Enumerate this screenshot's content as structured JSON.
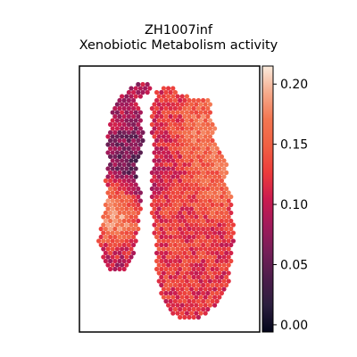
{
  "chart_data": {
    "type": "heatmap",
    "title_lines": [
      "ZH1007inf",
      "Xenobiotic Metabolism activity"
    ],
    "colorbar": {
      "ticks": [
        0.0,
        0.05,
        0.1,
        0.15,
        0.2
      ],
      "tick_labels": [
        "0.00",
        "0.05",
        "0.10",
        "0.15",
        "0.20"
      ],
      "range": [
        -0.006,
        0.215
      ],
      "colormap": "rocket",
      "stops": [
        "#03051a",
        "#2b1e3e",
        "#4c1d4b",
        "#751f58",
        "#a11a5b",
        "#cb1b4f",
        "#ec3c3b",
        "#f06043",
        "#f37651",
        "#f6ab8c",
        "#faebdd"
      ]
    },
    "tissue_regions": [
      {
        "name": "left strip",
        "outline": [
          [
            0.38,
            0.0
          ],
          [
            0.4,
            0.035
          ],
          [
            0.36,
            0.06
          ],
          [
            0.3,
            0.09
          ],
          [
            0.34,
            0.13
          ],
          [
            0.34,
            0.2
          ],
          [
            0.35,
            0.27
          ],
          [
            0.3,
            0.34
          ],
          [
            0.31,
            0.42
          ],
          [
            0.34,
            0.48
          ],
          [
            0.33,
            0.55
          ],
          [
            0.32,
            0.63
          ],
          [
            0.3,
            0.7
          ],
          [
            0.28,
            0.76
          ],
          [
            0.24,
            0.8
          ],
          [
            0.14,
            0.79
          ],
          [
            0.1,
            0.73
          ],
          [
            0.08,
            0.66
          ],
          [
            0.1,
            0.57
          ],
          [
            0.13,
            0.5
          ],
          [
            0.12,
            0.42
          ],
          [
            0.14,
            0.34
          ],
          [
            0.12,
            0.27
          ],
          [
            0.14,
            0.2
          ],
          [
            0.16,
            0.12
          ],
          [
            0.22,
            0.06
          ],
          [
            0.3,
            0.02
          ]
        ],
        "mean_activity": 0.09
      },
      {
        "name": "main tissue",
        "outline": [
          [
            0.58,
            1.0
          ],
          [
            0.68,
            0.985
          ],
          [
            0.76,
            0.94
          ],
          [
            0.82,
            0.9
          ],
          [
            0.86,
            0.84
          ],
          [
            0.86,
            0.76
          ],
          [
            0.88,
            0.68
          ],
          [
            0.89,
            0.62
          ],
          [
            0.87,
            0.56
          ],
          [
            0.87,
            0.49
          ],
          [
            0.83,
            0.43
          ],
          [
            0.84,
            0.36
          ],
          [
            0.82,
            0.3
          ],
          [
            0.76,
            0.25
          ],
          [
            0.78,
            0.19
          ],
          [
            0.74,
            0.14
          ],
          [
            0.75,
            0.08
          ],
          [
            0.67,
            0.08
          ],
          [
            0.58,
            0.06
          ],
          [
            0.5,
            0.02
          ],
          [
            0.42,
            0.05
          ],
          [
            0.39,
            0.11
          ],
          [
            0.39,
            0.2
          ],
          [
            0.41,
            0.3
          ],
          [
            0.39,
            0.4
          ],
          [
            0.39,
            0.5
          ],
          [
            0.4,
            0.6
          ],
          [
            0.42,
            0.7
          ],
          [
            0.42,
            0.8
          ],
          [
            0.45,
            0.9
          ],
          [
            0.5,
            0.96
          ]
        ],
        "mean_activity": 0.12
      }
    ],
    "hotspots": [
      {
        "location": "upper right",
        "activity": 0.18
      },
      {
        "location": "right side",
        "activity": 0.17
      },
      {
        "location": "lower middle",
        "activity": 0.13
      },
      {
        "location": "lower left strip",
        "activity": 0.21
      },
      {
        "location": "middle left",
        "activity": 0.04
      }
    ]
  }
}
